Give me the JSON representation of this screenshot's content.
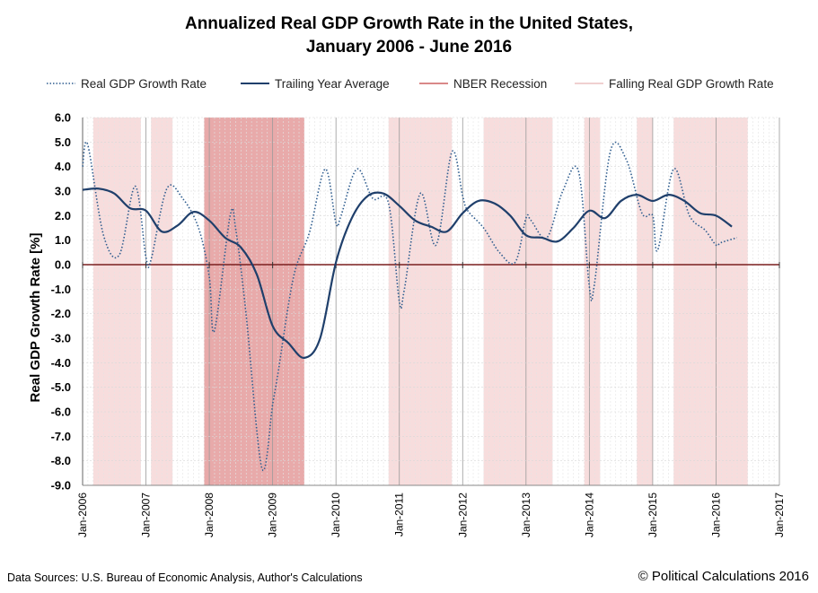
{
  "title_line1": "Annualized Real GDP Growth Rate in the United States,",
  "title_line2": "January 2006 - June 2016",
  "footer": {
    "source": "Data Sources: U.S. Bureau of Economic Analysis, Author's Calculations",
    "credit": "© Political Calculations 2016"
  },
  "colors": {
    "gdp": "#2f5d8f",
    "trailing": "#1f3f6b",
    "recession_fill": "#e8aaaa",
    "falling_fill": "#f7dddd",
    "zero_line": "#7a1f1f"
  },
  "chart_data": {
    "type": "line",
    "title": "Annualized Real GDP Growth Rate in the United States, January 2006 - June 2016",
    "xlabel": "",
    "ylabel": "Real GDP Growth Rate [%]",
    "ylim": [
      -9.0,
      6.0
    ],
    "xlim": [
      2006.0,
      2017.0
    ],
    "yticks": [
      "6.0",
      "5.0",
      "4.0",
      "3.0",
      "2.0",
      "1.0",
      "0.0",
      "-1.0",
      "-2.0",
      "-3.0",
      "-4.0",
      "-5.0",
      "-6.0",
      "-7.0",
      "-8.0",
      "-9.0"
    ],
    "xticks": [
      "Jan-2006",
      "Jan-2007",
      "Jan-2008",
      "Jan-2009",
      "Jan-2010",
      "Jan-2011",
      "Jan-2012",
      "Jan-2013",
      "Jan-2014",
      "Jan-2015",
      "Jan-2016",
      "Jan-2017"
    ],
    "legend": [
      "Real GDP Growth Rate",
      "Trailing Year Average",
      "NBER Recession",
      "Falling Real GDP Growth Rate"
    ],
    "series": [
      {
        "name": "Real GDP Growth Rate",
        "style": "dotted",
        "x": [
          2006.0,
          2006.08,
          2006.33,
          2006.58,
          2006.83,
          2007.0,
          2007.08,
          2007.33,
          2007.58,
          2007.83,
          2008.0,
          2008.08,
          2008.33,
          2008.42,
          2008.58,
          2008.83,
          2009.0,
          2009.08,
          2009.33,
          2009.58,
          2009.83,
          2010.0,
          2010.08,
          2010.33,
          2010.58,
          2010.83,
          2011.0,
          2011.08,
          2011.33,
          2011.58,
          2011.83,
          2012.0,
          2012.08,
          2012.33,
          2012.58,
          2012.83,
          2013.0,
          2013.08,
          2013.33,
          2013.58,
          2013.83,
          2014.0,
          2014.08,
          2014.33,
          2014.58,
          2014.83,
          2015.0,
          2015.08,
          2015.33,
          2015.58,
          2015.83,
          2016.0,
          2016.08,
          2016.33
        ],
        "values": [
          4.0,
          4.9,
          1.2,
          0.4,
          3.2,
          0.3,
          0.2,
          3.1,
          2.7,
          1.5,
          -0.5,
          -2.7,
          2.0,
          1.4,
          -2.0,
          -8.3,
          -5.7,
          -4.5,
          -0.5,
          1.3,
          3.9,
          1.7,
          2.0,
          3.9,
          2.7,
          2.5,
          -1.5,
          -1.0,
          2.9,
          0.8,
          4.6,
          2.8,
          2.2,
          1.5,
          0.5,
          0.1,
          1.9,
          1.8,
          1.1,
          3.0,
          3.8,
          -0.9,
          -0.8,
          4.6,
          4.3,
          2.1,
          2.0,
          0.6,
          3.9,
          2.0,
          1.4,
          0.8,
          0.9,
          1.1
        ]
      },
      {
        "name": "Trailing Year Average",
        "style": "solid",
        "x": [
          2006.0,
          2006.25,
          2006.5,
          2006.75,
          2007.0,
          2007.25,
          2007.5,
          2007.75,
          2008.0,
          2008.25,
          2008.5,
          2008.75,
          2009.0,
          2009.25,
          2009.5,
          2009.75,
          2010.0,
          2010.25,
          2010.5,
          2010.75,
          2011.0,
          2011.25,
          2011.5,
          2011.75,
          2012.0,
          2012.25,
          2012.5,
          2012.75,
          2013.0,
          2013.25,
          2013.5,
          2013.75,
          2014.0,
          2014.25,
          2014.5,
          2014.75,
          2015.0,
          2015.25,
          2015.5,
          2015.75,
          2016.0,
          2016.25
        ],
        "values": [
          3.05,
          3.1,
          2.9,
          2.3,
          2.2,
          1.35,
          1.6,
          2.15,
          1.8,
          1.1,
          0.7,
          -0.4,
          -2.5,
          -3.2,
          -3.8,
          -3.0,
          0.1,
          1.9,
          2.8,
          2.9,
          2.4,
          1.8,
          1.55,
          1.35,
          2.1,
          2.6,
          2.5,
          2.0,
          1.2,
          1.1,
          0.95,
          1.5,
          2.2,
          1.9,
          2.6,
          2.85,
          2.6,
          2.85,
          2.6,
          2.1,
          2.0,
          1.55
        ]
      }
    ],
    "recession_ranges": [
      [
        2007.92,
        2009.5
      ]
    ],
    "falling_ranges": [
      [
        2006.17,
        2006.92
      ],
      [
        2007.08,
        2007.42
      ],
      [
        2010.83,
        2011.83
      ],
      [
        2012.33,
        2013.42
      ],
      [
        2013.92,
        2014.17
      ],
      [
        2014.75,
        2015.0
      ],
      [
        2015.33,
        2016.5
      ]
    ]
  }
}
